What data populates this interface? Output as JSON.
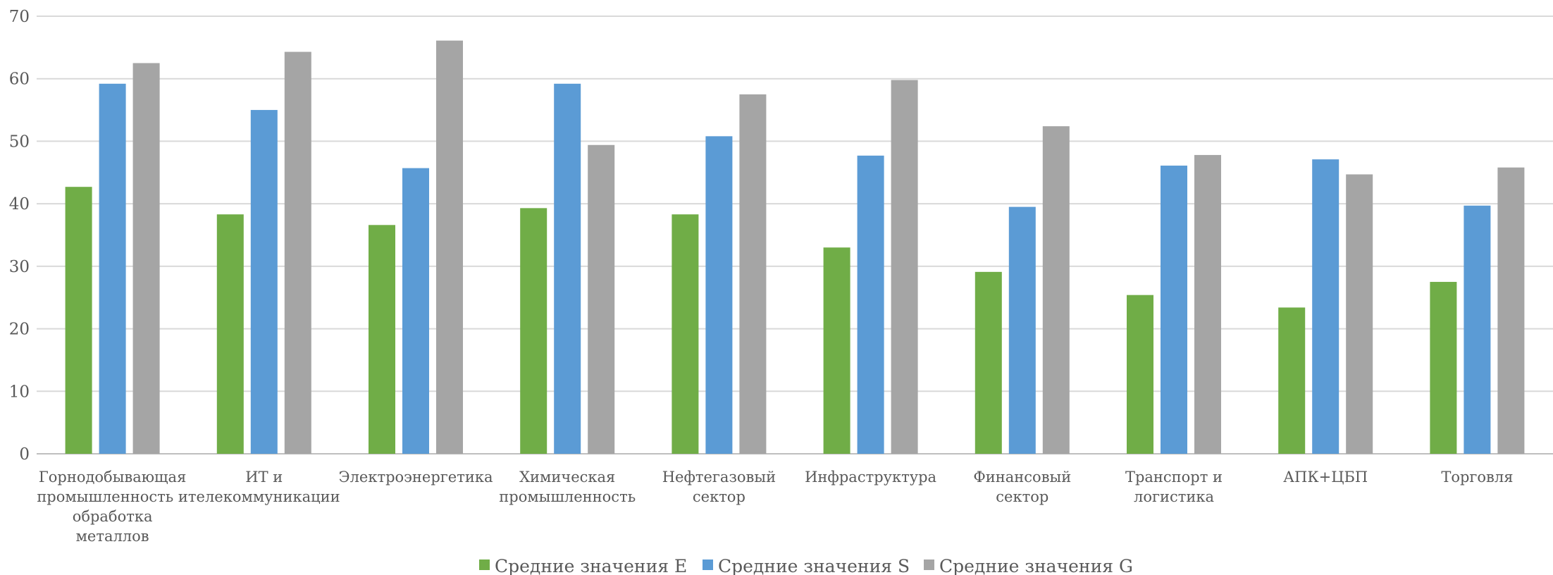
{
  "chart_data": {
    "type": "bar",
    "title": "",
    "xlabel": "",
    "ylabel": "",
    "ylim": [
      0,
      70
    ],
    "yticks": [
      0,
      10,
      20,
      30,
      40,
      50,
      60,
      70
    ],
    "grid": true,
    "legend_position": "bottom",
    "categories": [
      [
        "Горнодобывающая",
        "промышленность и",
        "обработка",
        "металлов"
      ],
      [
        "ИТ и",
        "телекоммуникации"
      ],
      [
        "Электроэнергетика"
      ],
      [
        "Химическая",
        "промышленность"
      ],
      [
        "Нефтегазовый",
        "сектор"
      ],
      [
        "Инфраструктура"
      ],
      [
        "Финансовый",
        "сектор"
      ],
      [
        "Транспорт и",
        "логистика"
      ],
      [
        "АПК+ЦБП"
      ],
      [
        "Торговля"
      ]
    ],
    "series": [
      {
        "name": "Средние значения E",
        "color": "#70ad47",
        "values": [
          42.7,
          38.3,
          36.6,
          39.3,
          38.3,
          33.0,
          29.1,
          25.4,
          23.4,
          27.5
        ]
      },
      {
        "name": "Средние значения S",
        "color": "#5b9bd5",
        "values": [
          59.2,
          55.0,
          45.7,
          59.2,
          50.8,
          47.7,
          39.5,
          46.1,
          47.1,
          39.7
        ]
      },
      {
        "name": "Средние значения G",
        "color": "#a5a5a5",
        "values": [
          62.5,
          64.3,
          66.1,
          49.4,
          57.5,
          59.8,
          52.4,
          47.8,
          44.7,
          45.8
        ]
      }
    ]
  }
}
